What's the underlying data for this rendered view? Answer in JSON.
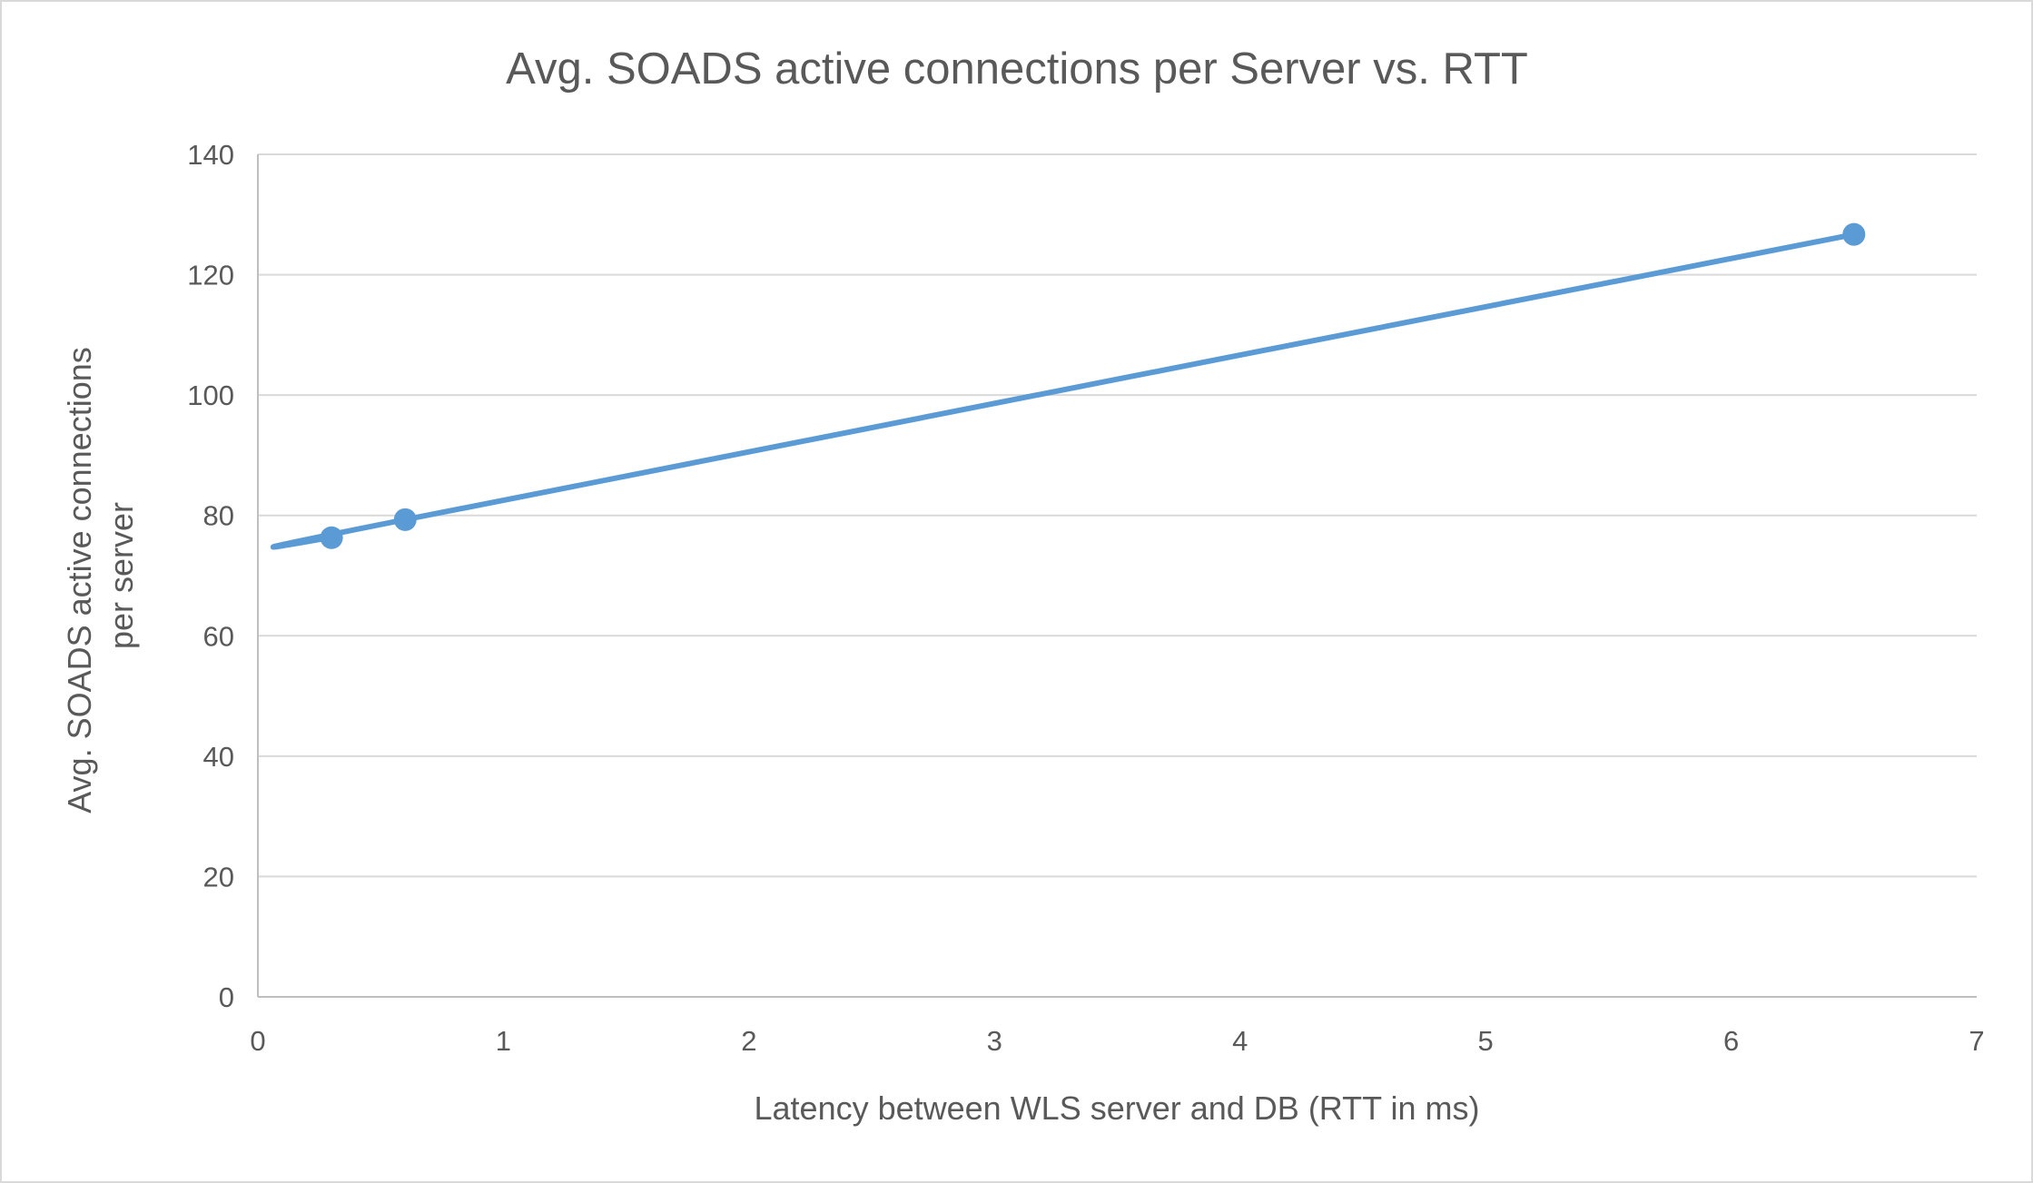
{
  "chart_data": {
    "type": "line",
    "title": "Avg. SOADS active connections per Server vs. RTT",
    "xlabel": "Latency between WLS server and DB (RTT in ms)",
    "ylabel_lines": [
      "Avg. SOADS active connections",
      "per server"
    ],
    "xlim": [
      0,
      7
    ],
    "ylim": [
      0,
      140
    ],
    "xticks": [
      0,
      1,
      2,
      3,
      4,
      5,
      6,
      7
    ],
    "yticks": [
      0,
      20,
      40,
      60,
      80,
      100,
      120,
      140
    ],
    "grid": "horizontal",
    "legend": "none",
    "markers": true,
    "smoothed": true,
    "color": "#5B9BD5",
    "series": [
      {
        "x": [
          0.3,
          0.6,
          6.5
        ],
        "y": [
          76.3,
          79.3,
          126.7
        ]
      }
    ]
  }
}
